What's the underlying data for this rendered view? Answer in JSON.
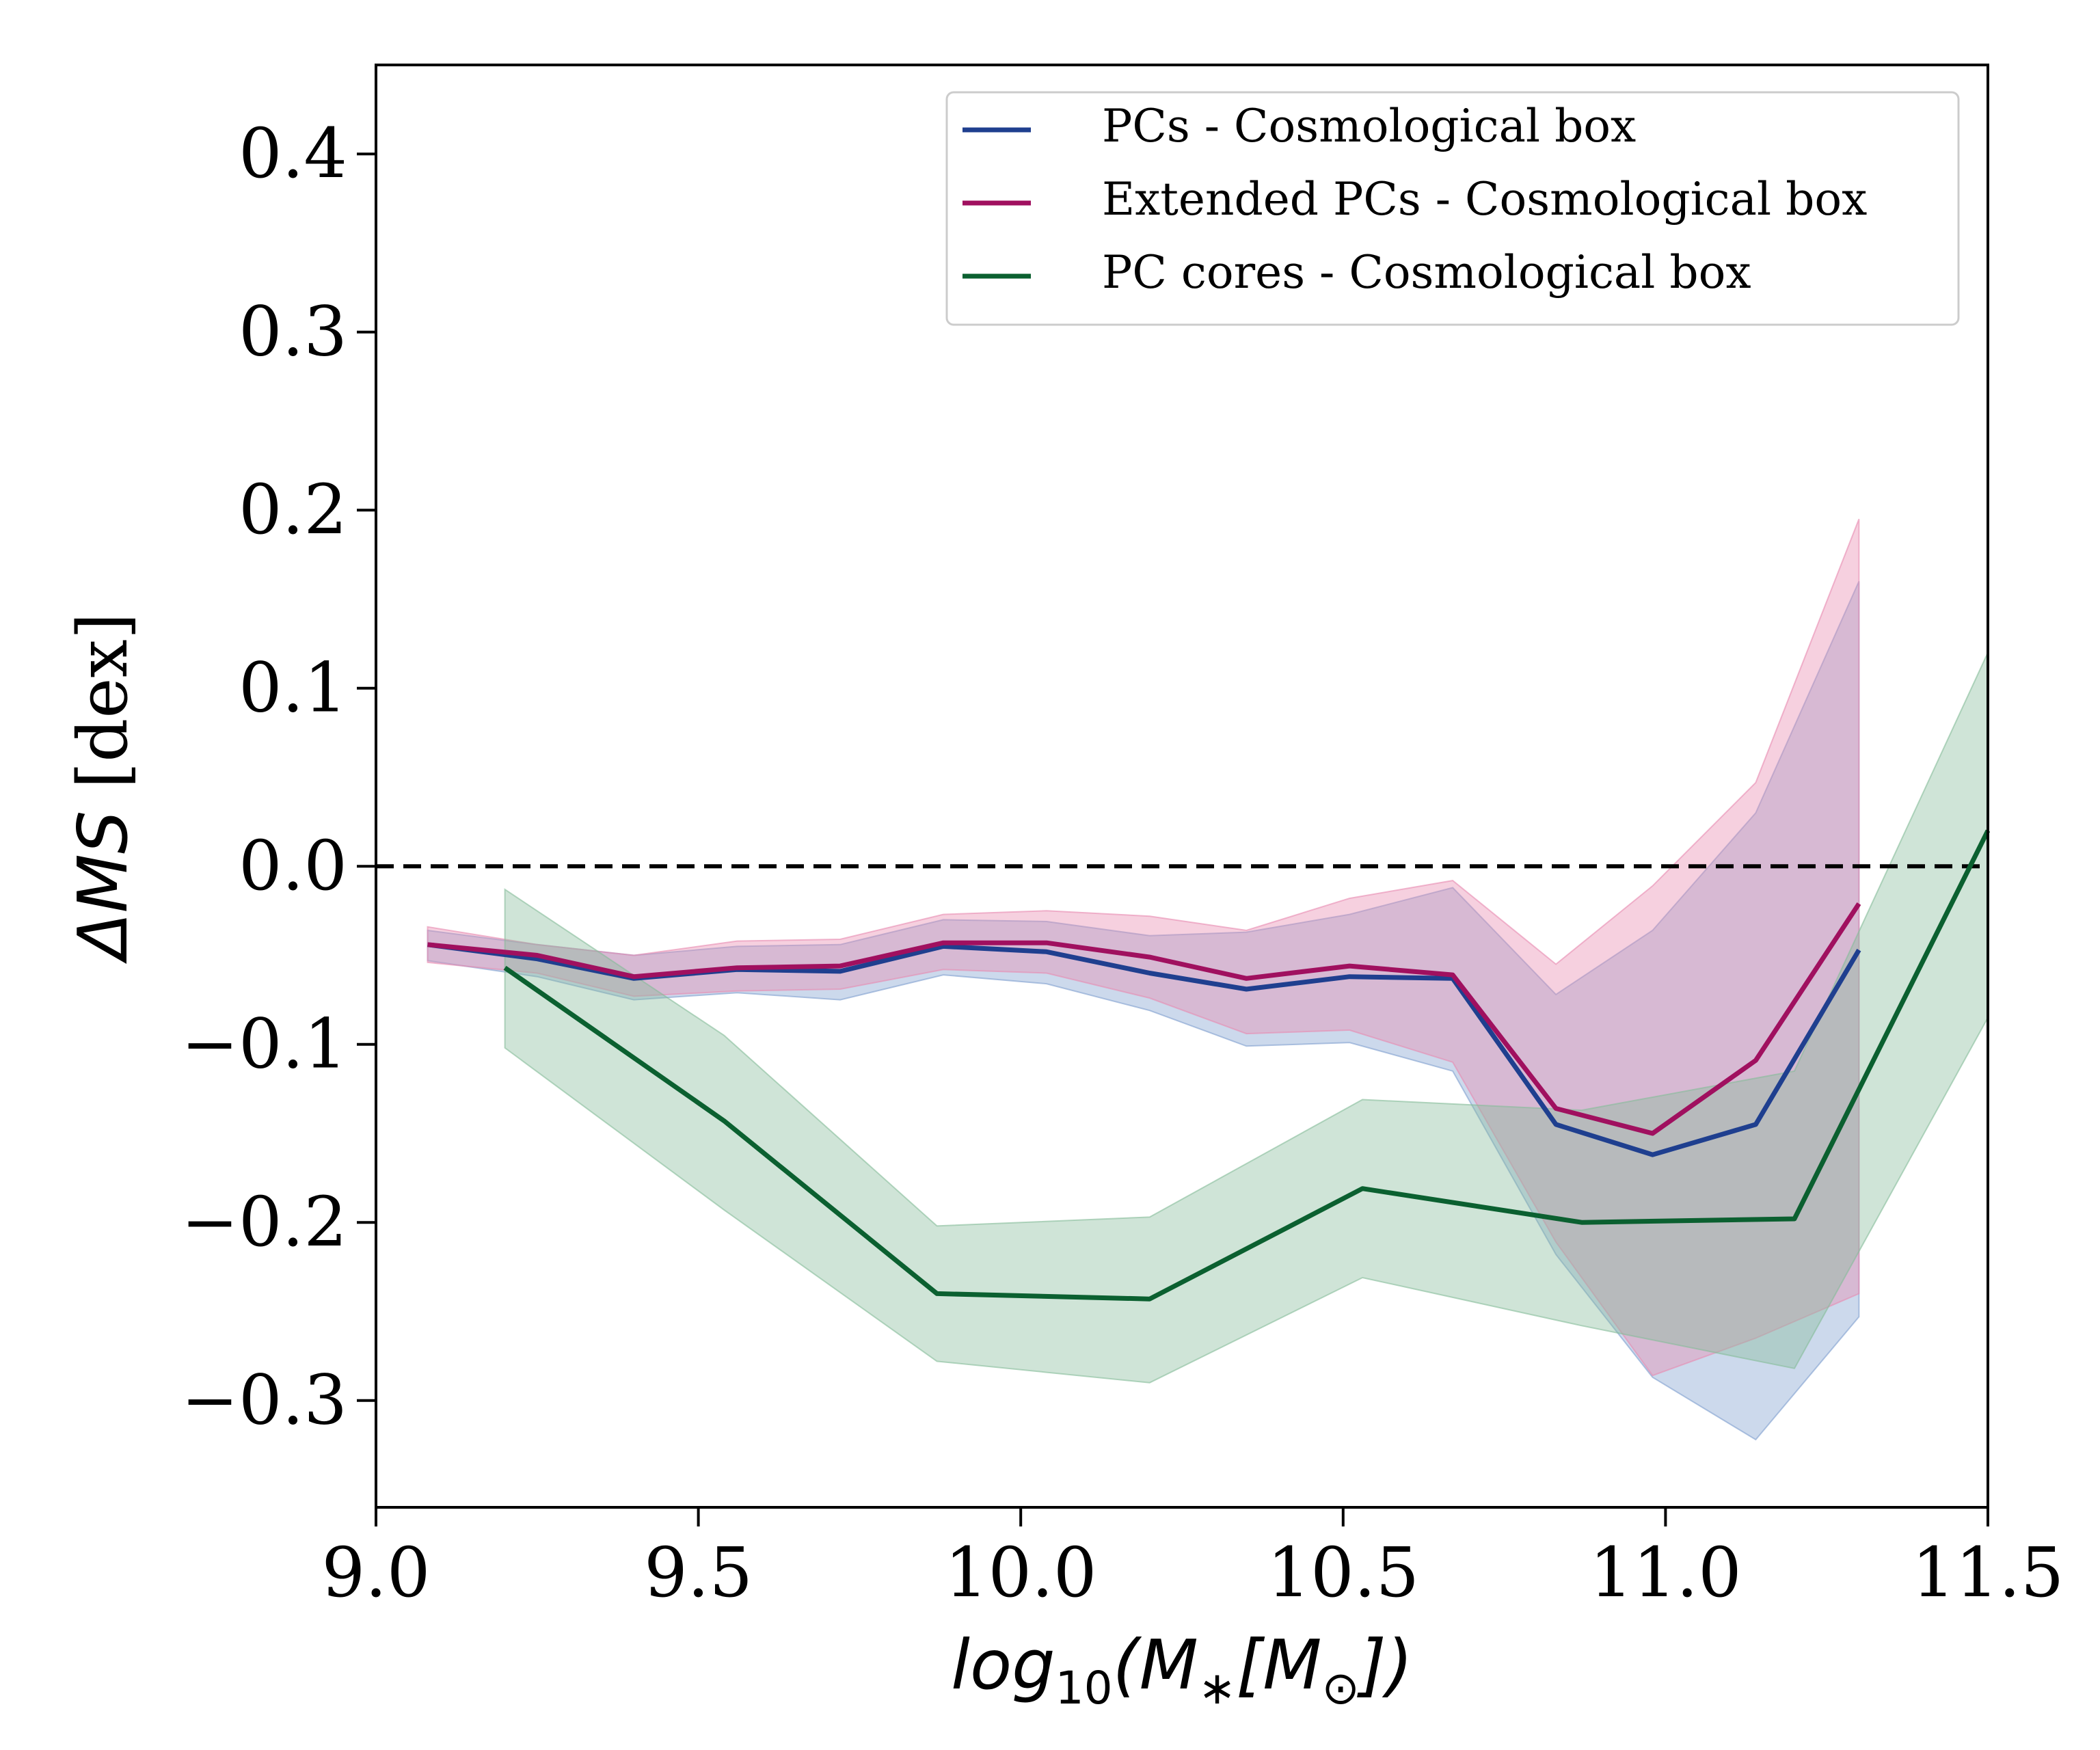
{
  "chart_data": {
    "type": "line",
    "xlabel": {
      "base": "log",
      "sub": "10",
      "rest": "(M",
      "sub2": "∗",
      "rest2": "[M",
      "sub3": "⊙",
      "end": "])"
    },
    "ylabel": {
      "sym": "ΔMS",
      "unit": " [dex]"
    },
    "xlim": [
      9.0,
      11.5
    ],
    "ylim": [
      -0.36,
      0.45
    ],
    "xticks": [
      "9.0",
      "9.5",
      "10.0",
      "10.5",
      "11.0",
      "11.5"
    ],
    "yticks": [
      "0.4",
      "0.3",
      "0.2",
      "0.1",
      "0.0",
      "−0.1",
      "−0.2",
      "−0.3"
    ],
    "xtick_values": [
      9.0,
      9.5,
      10.0,
      10.5,
      11.0,
      11.5
    ],
    "ytick_values": [
      0.4,
      0.3,
      0.2,
      0.1,
      0.0,
      -0.1,
      -0.2,
      -0.3
    ],
    "grid": false,
    "legend_position": "top-right",
    "reference_line": {
      "y": 0.0,
      "style": "dashed",
      "color": "#000000"
    },
    "series": [
      {
        "name": "PCs - Cosmological box",
        "color": "#1f3f8f",
        "band_color": "#7f9fcf",
        "x": [
          9.08,
          9.25,
          9.4,
          9.56,
          9.72,
          9.88,
          10.04,
          10.2,
          10.35,
          10.51,
          10.67,
          10.83,
          10.98,
          11.14,
          11.3
        ],
        "y": [
          -0.044,
          -0.052,
          -0.063,
          -0.058,
          -0.059,
          -0.045,
          -0.048,
          -0.06,
          -0.069,
          -0.062,
          -0.063,
          -0.145,
          -0.162,
          -0.145,
          -0.047
        ],
        "upper": [
          -0.036,
          -0.044,
          -0.05,
          -0.045,
          -0.044,
          -0.03,
          -0.031,
          -0.039,
          -0.037,
          -0.027,
          -0.012,
          -0.072,
          -0.036,
          0.03,
          0.16
        ],
        "lower": [
          -0.053,
          -0.062,
          -0.075,
          -0.071,
          -0.075,
          -0.061,
          -0.066,
          -0.081,
          -0.101,
          -0.099,
          -0.115,
          -0.218,
          -0.287,
          -0.322,
          -0.253
        ]
      },
      {
        "name": "Extended PCs - Cosmological box",
        "color": "#a0105f",
        "band_color": "#e88ab0",
        "x": [
          9.08,
          9.25,
          9.4,
          9.56,
          9.72,
          9.88,
          10.04,
          10.2,
          10.35,
          10.51,
          10.67,
          10.83,
          10.98,
          11.14,
          11.3
        ],
        "y": [
          -0.044,
          -0.05,
          -0.062,
          -0.057,
          -0.056,
          -0.043,
          -0.043,
          -0.051,
          -0.063,
          -0.056,
          -0.061,
          -0.136,
          -0.15,
          -0.109,
          -0.021
        ],
        "upper": [
          -0.034,
          -0.044,
          -0.05,
          -0.042,
          -0.041,
          -0.027,
          -0.025,
          -0.028,
          -0.036,
          -0.018,
          -0.008,
          -0.055,
          -0.011,
          0.047,
          0.195
        ],
        "lower": [
          -0.054,
          -0.06,
          -0.073,
          -0.07,
          -0.069,
          -0.058,
          -0.06,
          -0.074,
          -0.094,
          -0.092,
          -0.11,
          -0.211,
          -0.286,
          -0.265,
          -0.24
        ]
      },
      {
        "name": "PC cores - Cosmological box",
        "color": "#0b6030",
        "band_color": "#86bc9a",
        "x": [
          9.2,
          9.54,
          9.87,
          10.2,
          10.53,
          10.87,
          11.2,
          11.5
        ],
        "y": [
          -0.057,
          -0.143,
          -0.24,
          -0.243,
          -0.181,
          -0.2,
          -0.198,
          0.02
        ],
        "upper": [
          -0.013,
          -0.095,
          -0.202,
          -0.197,
          -0.131,
          -0.137,
          -0.115,
          0.12
        ],
        "lower": [
          -0.102,
          -0.193,
          -0.278,
          -0.29,
          -0.231,
          -0.258,
          -0.282,
          -0.085
        ]
      }
    ]
  }
}
